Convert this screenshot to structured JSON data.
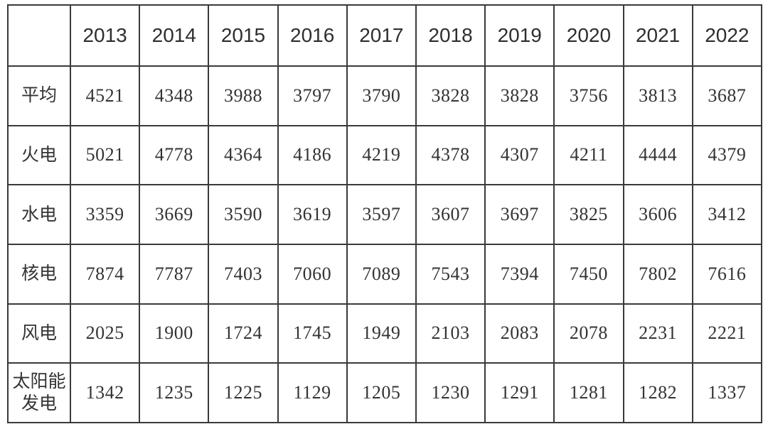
{
  "table": {
    "corner_label": "",
    "columns": [
      "2013",
      "2014",
      "2015",
      "2016",
      "2017",
      "2018",
      "2019",
      "2020",
      "2021",
      "2022"
    ],
    "rows": [
      {
        "label": "平均",
        "values": [
          "4521",
          "4348",
          "3988",
          "3797",
          "3790",
          "3828",
          "3828",
          "3756",
          "3813",
          "3687"
        ]
      },
      {
        "label": "火电",
        "values": [
          "5021",
          "4778",
          "4364",
          "4186",
          "4219",
          "4378",
          "4307",
          "4211",
          "4444",
          "4379"
        ]
      },
      {
        "label": "水电",
        "values": [
          "3359",
          "3669",
          "3590",
          "3619",
          "3597",
          "3607",
          "3697",
          "3825",
          "3606",
          "3412"
        ]
      },
      {
        "label": "核电",
        "values": [
          "7874",
          "7787",
          "7403",
          "7060",
          "7089",
          "7543",
          "7394",
          "7450",
          "7802",
          "7616"
        ]
      },
      {
        "label": "风电",
        "values": [
          "2025",
          "1900",
          "1724",
          "1745",
          "1949",
          "2103",
          "2083",
          "2078",
          "2231",
          "2221"
        ]
      },
      {
        "label": "太阳能发电",
        "values": [
          "1342",
          "1235",
          "1225",
          "1129",
          "1205",
          "1230",
          "1291",
          "1281",
          "1282",
          "1337"
        ]
      }
    ]
  },
  "colors": {
    "border": "#3a3a3a",
    "text": "#333333",
    "background": "#ffffff"
  },
  "chart_data": {
    "type": "table",
    "categories": [
      "2013",
      "2014",
      "2015",
      "2016",
      "2017",
      "2018",
      "2019",
      "2020",
      "2021",
      "2022"
    ],
    "series": [
      {
        "name": "平均",
        "values": [
          4521,
          4348,
          3988,
          3797,
          3790,
          3828,
          3828,
          3756,
          3813,
          3687
        ]
      },
      {
        "name": "火电",
        "values": [
          5021,
          4778,
          4364,
          4186,
          4219,
          4378,
          4307,
          4211,
          4444,
          4379
        ]
      },
      {
        "name": "水电",
        "values": [
          3359,
          3669,
          3590,
          3619,
          3597,
          3607,
          3697,
          3825,
          3606,
          3412
        ]
      },
      {
        "name": "核电",
        "values": [
          7874,
          7787,
          7403,
          7060,
          7089,
          7543,
          7394,
          7450,
          7802,
          7616
        ]
      },
      {
        "name": "风电",
        "values": [
          2025,
          1900,
          1724,
          1745,
          1949,
          2103,
          2083,
          2078,
          2231,
          2221
        ]
      },
      {
        "name": "太阳能发电",
        "values": [
          1342,
          1235,
          1225,
          1129,
          1205,
          1230,
          1291,
          1281,
          1282,
          1337
        ]
      }
    ],
    "title": "",
    "xlabel": "",
    "ylabel": "",
    "legend_position": "none",
    "grid": true
  }
}
